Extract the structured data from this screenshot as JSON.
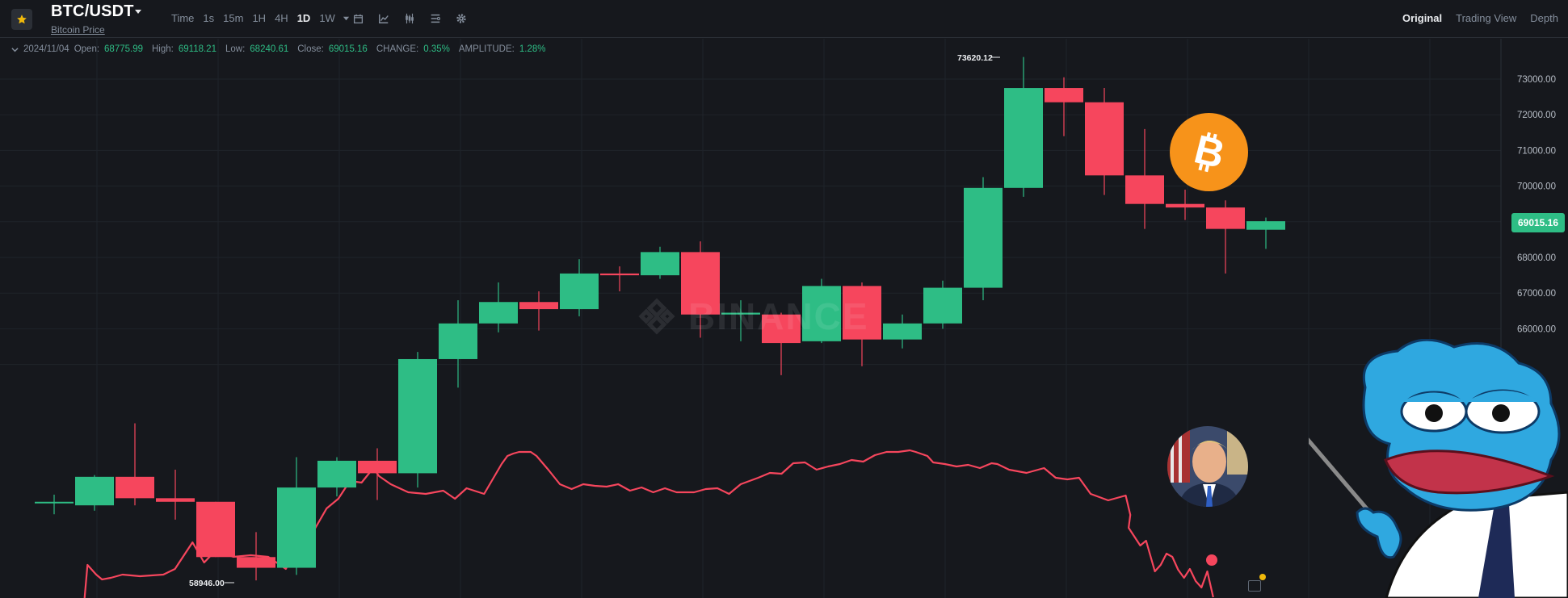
{
  "header": {
    "pair": "BTC/USDT",
    "subtitle": "Bitcoin Price",
    "intervals": [
      "Time",
      "1s",
      "15m",
      "1H",
      "4H",
      "1D",
      "1W"
    ],
    "active_interval": "1D",
    "views": [
      "Original",
      "Trading View",
      "Depth"
    ],
    "active_view": "Original"
  },
  "ohlc": {
    "date": "2024/11/04",
    "open_label": "Open:",
    "open": "68775.99",
    "high_label": "High:",
    "high": "69118.21",
    "low_label": "Low:",
    "low": "68240.61",
    "close_label": "Close:",
    "close": "69015.16",
    "change_label": "CHANGE:",
    "change": "0.35%",
    "amplitude_label": "AMPLITUDE:",
    "amplitude": "1.28%"
  },
  "watermark": "BINANCE",
  "last_price": "69015.16",
  "colors": {
    "up": "#2ebd85",
    "down": "#f6465d",
    "overlay": "#f6465d",
    "bg": "#16181d",
    "coin": "#f7931a"
  },
  "icons": [
    "star-icon",
    "caret-down-icon",
    "calendar-icon",
    "indicator-icon",
    "candle-type-icon",
    "layout-icon",
    "gear-icon",
    "bitcoin-logo-icon",
    "portrait-image",
    "pepe-pointer-image"
  ],
  "chart_data": {
    "type": "candlestick",
    "y_ticks": [
      "73000.00",
      "72000.00",
      "71000.00",
      "70000.00",
      "68000.00",
      "67000.00",
      "66000.00"
    ],
    "max_label": "73620.12",
    "min_label": "58946.00",
    "candles": [
      {
        "o": 61150,
        "h": 61350,
        "l": 60800,
        "c": 61150
      },
      {
        "o": 61050,
        "h": 61900,
        "l": 60900,
        "c": 61850
      },
      {
        "o": 61850,
        "h": 63350,
        "l": 61050,
        "c": 61250
      },
      {
        "o": 61250,
        "h": 62050,
        "l": 60650,
        "c": 61150
      },
      {
        "o": 61150,
        "h": 61150,
        "l": 59600,
        "c": 59600
      },
      {
        "o": 59600,
        "h": 60300,
        "l": 58946,
        "c": 59300
      },
      {
        "o": 59300,
        "h": 62400,
        "l": 59100,
        "c": 61550
      },
      {
        "o": 61550,
        "h": 62400,
        "l": 61300,
        "c": 62300
      },
      {
        "o": 62300,
        "h": 62650,
        "l": 61200,
        "c": 61950
      },
      {
        "o": 61950,
        "h": 65350,
        "l": 61550,
        "c": 65150
      },
      {
        "o": 65150,
        "h": 66800,
        "l": 64350,
        "c": 66150
      },
      {
        "o": 66150,
        "h": 67300,
        "l": 65900,
        "c": 66750
      },
      {
        "o": 66750,
        "h": 67050,
        "l": 65950,
        "c": 66550
      },
      {
        "o": 66550,
        "h": 67950,
        "l": 66350,
        "c": 67550
      },
      {
        "o": 67550,
        "h": 67750,
        "l": 67050,
        "c": 67500
      },
      {
        "o": 67500,
        "h": 68300,
        "l": 67400,
        "c": 68150
      },
      {
        "o": 68150,
        "h": 68450,
        "l": 65750,
        "c": 66400
      },
      {
        "o": 66400,
        "h": 66800,
        "l": 65650,
        "c": 66450
      },
      {
        "o": 66400,
        "h": 66450,
        "l": 64700,
        "c": 65600
      },
      {
        "o": 65650,
        "h": 67400,
        "l": 65600,
        "c": 67200
      },
      {
        "o": 67200,
        "h": 67300,
        "l": 64950,
        "c": 65700
      },
      {
        "o": 65700,
        "h": 66400,
        "l": 65450,
        "c": 66150
      },
      {
        "o": 66150,
        "h": 67350,
        "l": 66000,
        "c": 67150
      },
      {
        "o": 67150,
        "h": 70250,
        "l": 66800,
        "c": 69950
      },
      {
        "o": 69950,
        "h": 73620.12,
        "l": 69700,
        "c": 72750
      },
      {
        "o": 72750,
        "h": 73050,
        "l": 71400,
        "c": 72350
      },
      {
        "o": 72350,
        "h": 72750,
        "l": 69750,
        "c": 70300
      },
      {
        "o": 70300,
        "h": 71600,
        "l": 68800,
        "c": 69500
      },
      {
        "o": 69500,
        "h": 69900,
        "l": 69050,
        "c": 69400
      },
      {
        "o": 69400,
        "h": 69600,
        "l": 67550,
        "c": 68800
      },
      {
        "o": 68775.99,
        "h": 69118.21,
        "l": 68240.61,
        "c": 69015.16
      }
    ]
  }
}
